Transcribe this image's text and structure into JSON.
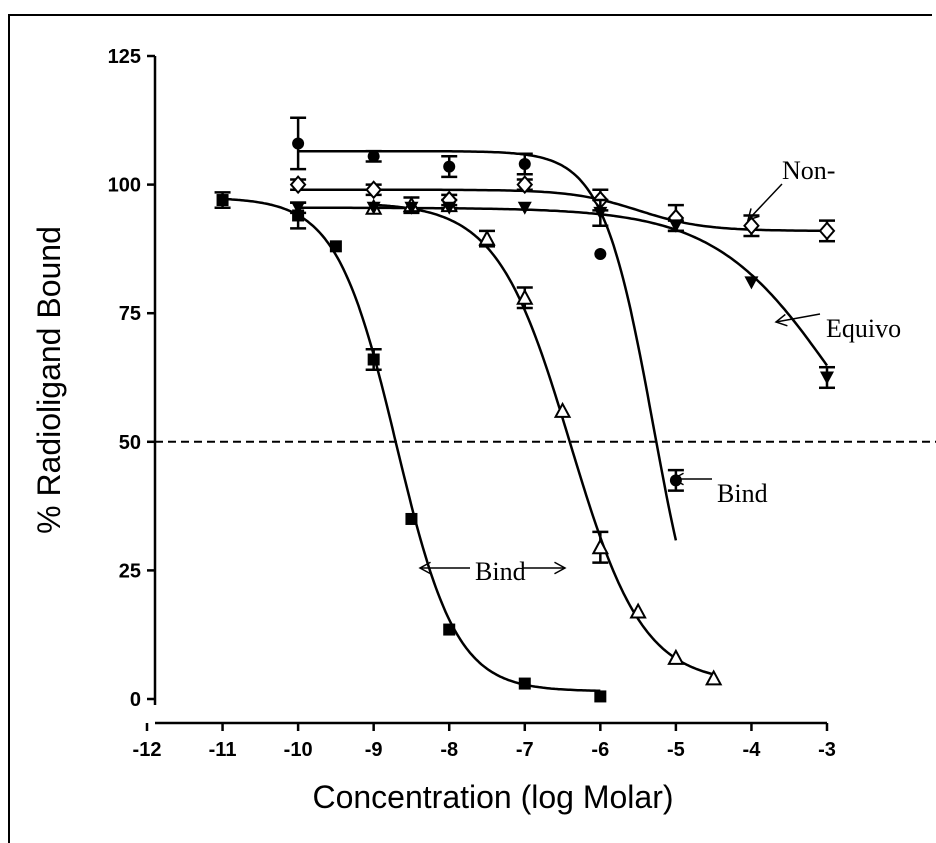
{
  "chart_data": {
    "type": "scatter",
    "title": "",
    "xlabel": "Concentration (log Molar)",
    "ylabel": "% Radioligand Bound",
    "xlim": [
      -12,
      -3
    ],
    "ylim": [
      -4,
      125
    ],
    "x_ticks": [
      "-12",
      "-11",
      "-10",
      "-9",
      "-8",
      "-7",
      "-6",
      "-5",
      "-4",
      "-3"
    ],
    "y_ticks": [
      "0",
      "25",
      "50",
      "75",
      "100",
      "125"
    ],
    "reference_line": {
      "y": 50,
      "style": "dashed"
    },
    "grid": false,
    "legend": "none",
    "series": [
      {
        "marker": "square-filled",
        "x": [
          -11,
          -10,
          -9.5,
          -9,
          -8.5,
          -8,
          -7,
          -6
        ],
        "y": [
          97,
          94,
          88,
          66,
          35,
          13.5,
          3,
          0.5
        ],
        "err": [
          1.5,
          2.5,
          0.5,
          2,
          0.5,
          0.5,
          0.5,
          0.5
        ],
        "fit": {
          "top": 97.5,
          "bottom": 1.5,
          "logec50": -8.7,
          "hill": 1.1
        }
      },
      {
        "marker": "triangle-open",
        "x": [
          -9,
          -8.5,
          -8,
          -7.5,
          -7,
          -6.5,
          -6,
          -5.5,
          -5,
          -4.5
        ],
        "y": [
          95.5,
          96,
          96,
          89.5,
          78,
          56,
          29.5,
          17,
          8,
          4
        ],
        "err": [
          0.5,
          1.5,
          1,
          1.5,
          2,
          0.5,
          3,
          0.5,
          0.5,
          0.5
        ],
        "fit": {
          "top": 96.5,
          "bottom": 3,
          "logec50": -6.4,
          "hill": 0.9
        }
      },
      {
        "marker": "circle-filled",
        "x": [
          -10,
          -9,
          -8,
          -7,
          -6,
          -5
        ],
        "y": [
          108,
          105.5,
          103.5,
          104,
          86.5,
          42.5
        ],
        "err": [
          5,
          1,
          2,
          2,
          0.5,
          2
        ],
        "fit": {
          "top": 106.5,
          "bottom": 0,
          "logec50": -5.3,
          "hill": 1.3
        }
      },
      {
        "marker": "diamond-open",
        "x": [
          -10,
          -9,
          -8,
          -7,
          -6,
          -5,
          -4,
          -3
        ],
        "y": [
          100,
          99,
          97,
          100,
          97,
          93.5,
          92,
          91
        ],
        "err": [
          1,
          1,
          1,
          1,
          2,
          2.5,
          2,
          2
        ],
        "fit": {
          "top": 99,
          "bottom": 91,
          "logec50": -5.5,
          "hill": 1
        }
      },
      {
        "marker": "triangle-down-filled",
        "x": [
          -10,
          -9,
          -8.5,
          -8,
          -7,
          -6,
          -5,
          -4,
          -3
        ],
        "y": [
          95.5,
          95.5,
          95.5,
          95.5,
          95.5,
          94.5,
          92,
          81,
          62.5
        ],
        "err": [
          1,
          0.5,
          0.5,
          0.5,
          0.5,
          2.5,
          1,
          0.5,
          2
        ],
        "fit": {
          "top": 95.5,
          "bottom": 30,
          "logec50": -2.9,
          "hill": 0.55
        }
      }
    ],
    "annotations": [
      {
        "text": "Bind",
        "x": -8.2,
        "y": 24
      },
      {
        "text": "Bind",
        "x": -4.6,
        "y": 40.5
      },
      {
        "text": "Non-",
        "x": -3.6,
        "y": 103
      },
      {
        "text": "Equivo",
        "x": -3.1,
        "y": 72
      }
    ]
  }
}
